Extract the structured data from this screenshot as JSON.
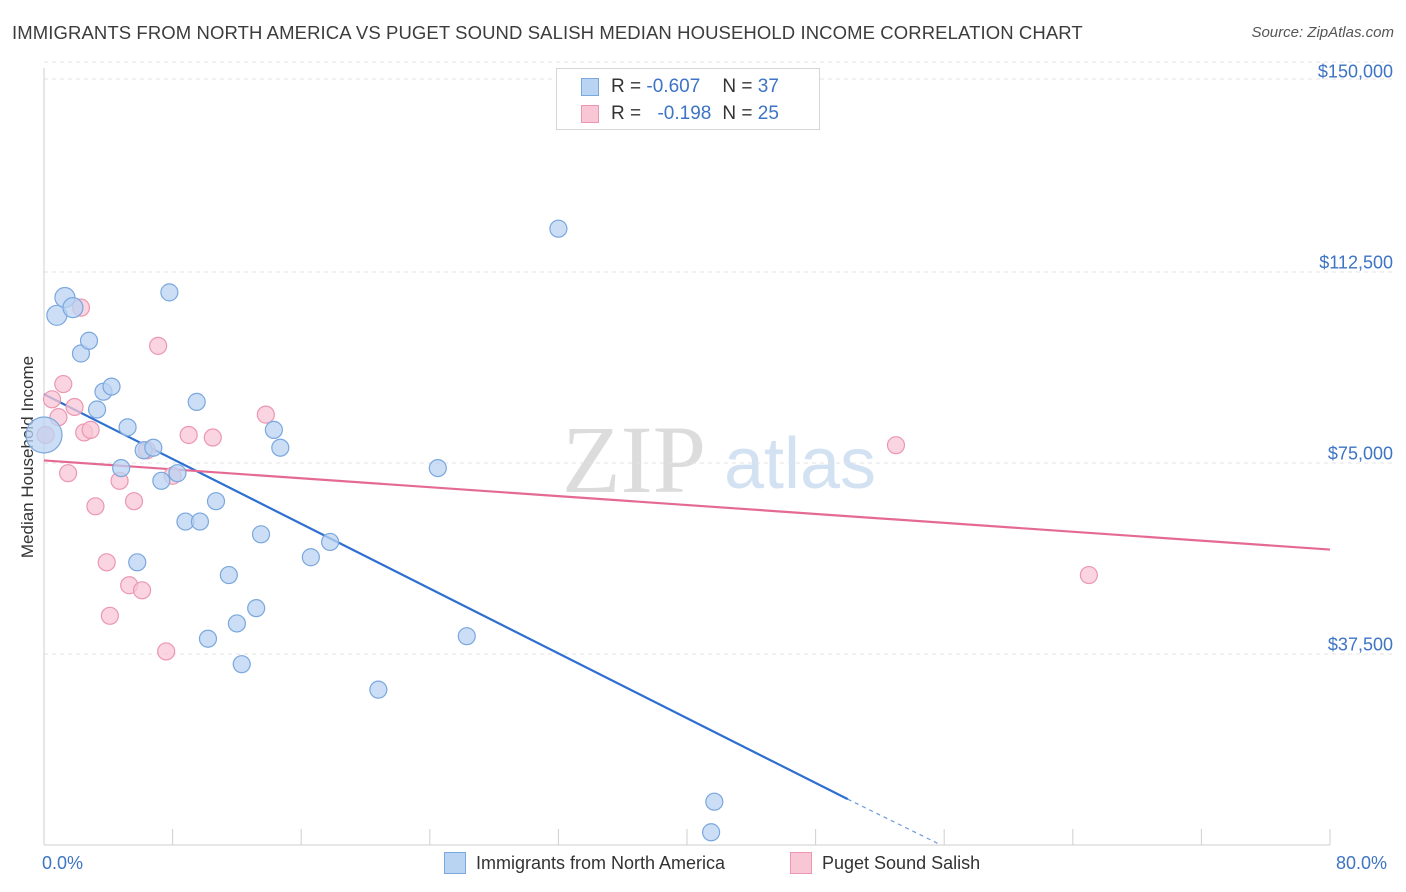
{
  "title": "IMMIGRANTS FROM NORTH AMERICA VS PUGET SOUND SALISH MEDIAN HOUSEHOLD INCOME CORRELATION CHART",
  "source": "Source: ZipAtlas.com",
  "watermark": {
    "zip": "ZIP",
    "atlas": "atlas"
  },
  "legend": {
    "rows": [
      {
        "r_label": "R =",
        "r_value": "-0.607",
        "n_label": "N =",
        "n_value": "37"
      },
      {
        "r_label": "R =",
        "r_value": "-0.198",
        "n_label": "N =",
        "n_value": "25"
      }
    ]
  },
  "bottom_legend": {
    "series1": "Immigrants from North America",
    "series2": "Puget Sound Salish"
  },
  "colors": {
    "blue_fill": "#b9d3f2",
    "blue_stroke": "#7aa7de",
    "blue_line": "#2e6fd0",
    "pink_fill": "#f8c6d5",
    "pink_stroke": "#ec97b1",
    "pink_line": "#e46a95",
    "accent_text": "#3d74c4"
  },
  "chart_data": {
    "type": "scatter",
    "title": "IMMIGRANTS FROM NORTH AMERICA VS PUGET SOUND SALISH MEDIAN HOUSEHOLD INCOME CORRELATION CHART",
    "xlabel": "",
    "ylabel": "Median Household Income",
    "xlim": [
      0,
      80
    ],
    "ylim": [
      0,
      155000
    ],
    "x_tick_labels": [
      "0.0%",
      "80.0%"
    ],
    "y_ticks": [
      {
        "value": 37500,
        "label": "$37,500"
      },
      {
        "value": 75000,
        "label": "$75,000"
      },
      {
        "value": 112500,
        "label": "$112,500"
      },
      {
        "value": 150000,
        "label": "$150,000"
      }
    ],
    "grid": true,
    "series": [
      {
        "name": "Immigrants from North America",
        "color": "blue",
        "points": [
          {
            "x": 0.0,
            "y": 80500,
            "size": "large"
          },
          {
            "x": 0.8,
            "y": 104000
          },
          {
            "x": 1.3,
            "y": 107500
          },
          {
            "x": 1.8,
            "y": 105500
          },
          {
            "x": 2.3,
            "y": 96500
          },
          {
            "x": 2.8,
            "y": 99000
          },
          {
            "x": 3.3,
            "y": 85500
          },
          {
            "x": 3.7,
            "y": 89000
          },
          {
            "x": 4.2,
            "y": 90000
          },
          {
            "x": 4.8,
            "y": 74000
          },
          {
            "x": 5.2,
            "y": 82000
          },
          {
            "x": 5.8,
            "y": 55500
          },
          {
            "x": 6.2,
            "y": 77500
          },
          {
            "x": 6.8,
            "y": 78000
          },
          {
            "x": 7.3,
            "y": 71500
          },
          {
            "x": 7.8,
            "y": 108500
          },
          {
            "x": 8.3,
            "y": 73000
          },
          {
            "x": 8.8,
            "y": 63500
          },
          {
            "x": 9.5,
            "y": 87000
          },
          {
            "x": 9.7,
            "y": 63500
          },
          {
            "x": 10.2,
            "y": 40500
          },
          {
            "x": 10.7,
            "y": 67500
          },
          {
            "x": 11.5,
            "y": 53000
          },
          {
            "x": 12.0,
            "y": 43500
          },
          {
            "x": 12.3,
            "y": 35500
          },
          {
            "x": 13.2,
            "y": 46500
          },
          {
            "x": 13.5,
            "y": 61000
          },
          {
            "x": 14.3,
            "y": 81500
          },
          {
            "x": 14.7,
            "y": 78000
          },
          {
            "x": 16.6,
            "y": 56500
          },
          {
            "x": 17.8,
            "y": 59500
          },
          {
            "x": 20.8,
            "y": 30500
          },
          {
            "x": 24.5,
            "y": 74000
          },
          {
            "x": 26.3,
            "y": 41000
          },
          {
            "x": 32.0,
            "y": 121000
          },
          {
            "x": 41.5,
            "y": 2500
          },
          {
            "x": 41.7,
            "y": 8500
          }
        ]
      },
      {
        "name": "Puget Sound Salish",
        "color": "pink",
        "points": [
          {
            "x": 0.1,
            "y": 80500
          },
          {
            "x": 0.5,
            "y": 87500
          },
          {
            "x": 0.9,
            "y": 84000
          },
          {
            "x": 1.2,
            "y": 90500
          },
          {
            "x": 1.5,
            "y": 73000
          },
          {
            "x": 1.9,
            "y": 86000
          },
          {
            "x": 2.3,
            "y": 105500
          },
          {
            "x": 2.5,
            "y": 81000
          },
          {
            "x": 2.9,
            "y": 81500
          },
          {
            "x": 3.2,
            "y": 66500
          },
          {
            "x": 3.9,
            "y": 55500
          },
          {
            "x": 4.1,
            "y": 45000
          },
          {
            "x": 4.7,
            "y": 71500
          },
          {
            "x": 5.3,
            "y": 51000
          },
          {
            "x": 5.6,
            "y": 67500
          },
          {
            "x": 6.1,
            "y": 50000
          },
          {
            "x": 6.4,
            "y": 77500
          },
          {
            "x": 7.1,
            "y": 98000
          },
          {
            "x": 7.6,
            "y": 38000
          },
          {
            "x": 8.0,
            "y": 72500
          },
          {
            "x": 9.0,
            "y": 80500
          },
          {
            "x": 10.5,
            "y": 80000
          },
          {
            "x": 13.8,
            "y": 84500
          },
          {
            "x": 53.0,
            "y": 78500
          },
          {
            "x": 65.0,
            "y": 53000
          }
        ]
      }
    ],
    "trend_lines": [
      {
        "series": "Immigrants from North America",
        "x_start": 0.0,
        "y_start": 88500,
        "x_end": 50.0,
        "y_end": 9000,
        "dashed_to_x": 55.8,
        "dashed_to_y": 0
      },
      {
        "series": "Puget Sound Salish",
        "x_start": 0.0,
        "y_start": 75500,
        "x_end": 80.0,
        "y_end": 58000
      }
    ]
  }
}
